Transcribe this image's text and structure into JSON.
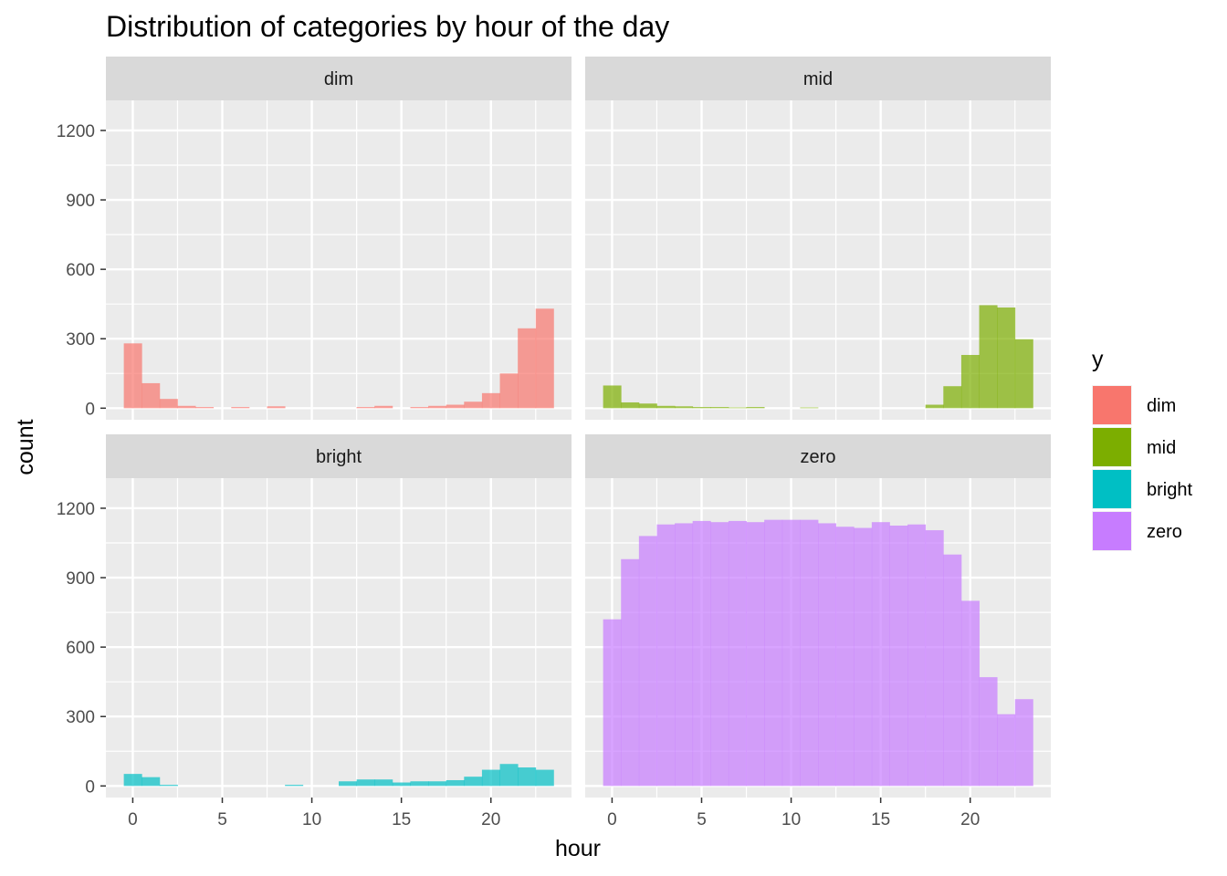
{
  "chart_data": {
    "type": "bar",
    "title": "Distribution of categories by hour of the day",
    "xlabel": "hour",
    "ylabel": "count",
    "xlim": [
      -1.5,
      24.5
    ],
    "ylim": [
      -50,
      1330
    ],
    "x_ticks": [
      0,
      5,
      10,
      15,
      20
    ],
    "y_ticks": [
      0,
      300,
      600,
      900,
      1200
    ],
    "x": [
      0,
      1,
      2,
      3,
      4,
      5,
      6,
      7,
      8,
      9,
      10,
      11,
      12,
      13,
      14,
      15,
      16,
      17,
      18,
      19,
      20,
      21,
      22,
      23
    ],
    "bin_width": 1,
    "grid": true,
    "legend_position": "right",
    "legend_title": "y",
    "series": [
      {
        "name": "dim",
        "color": "#F8766D",
        "values": [
          280,
          108,
          40,
          10,
          5,
          0,
          5,
          0,
          8,
          0,
          0,
          0,
          0,
          5,
          10,
          0,
          5,
          10,
          15,
          28,
          65,
          150,
          345,
          430
        ]
      },
      {
        "name": "mid",
        "color": "#7CAE00",
        "values": [
          98,
          25,
          20,
          10,
          8,
          5,
          5,
          3,
          5,
          0,
          0,
          3,
          0,
          0,
          0,
          0,
          0,
          0,
          15,
          95,
          230,
          445,
          435,
          298
        ]
      },
      {
        "name": "bright",
        "color": "#00BFC4",
        "values": [
          52,
          38,
          5,
          0,
          0,
          0,
          0,
          0,
          0,
          5,
          0,
          0,
          20,
          28,
          28,
          15,
          20,
          20,
          25,
          40,
          70,
          95,
          80,
          70
        ]
      },
      {
        "name": "zero",
        "color": "#C77CFF",
        "values": [
          720,
          980,
          1080,
          1130,
          1135,
          1145,
          1140,
          1145,
          1140,
          1150,
          1150,
          1150,
          1135,
          1120,
          1115,
          1140,
          1125,
          1130,
          1105,
          1000,
          800,
          470,
          310,
          375
        ]
      }
    ]
  }
}
